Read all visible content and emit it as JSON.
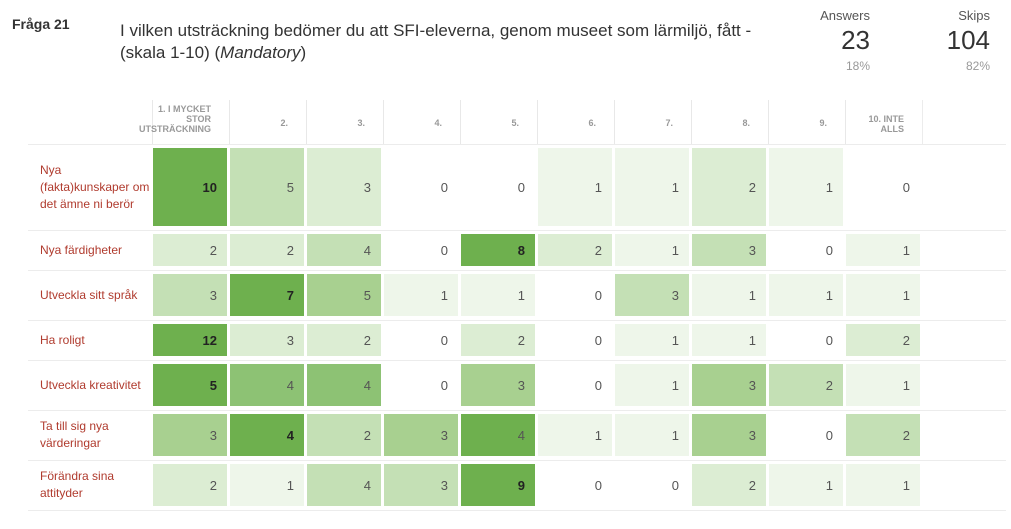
{
  "question": {
    "number": "Fråga 21",
    "title": "I vilken utsträckning bedömer du att SFI-eleverna, genom museet som lärmiljö, fått - (skala 1-10)",
    "mandatory": "Mandatory"
  },
  "stats": {
    "answers": {
      "label": "Answers",
      "value": "23",
      "percent": "18%"
    },
    "skips": {
      "label": "Skips",
      "value": "104",
      "percent": "82%"
    }
  },
  "colors": {
    "shade0": "#ffffff",
    "shade1": "#eef6ea",
    "shade2": "#dcedd3",
    "shade3": "#c4e0b5",
    "shade4": "#a8d090",
    "shade5": "#8dc274",
    "shade6": "#6eb04e",
    "label": "#b03b2e"
  },
  "chart_data": {
    "type": "table",
    "columns": [
      "1. I MYCKET STOR UTSTRÄCKNING",
      "2.",
      "3.",
      "4.",
      "5.",
      "6.",
      "7.",
      "8.",
      "9.",
      "10. INTE ALLS"
    ],
    "rows": [
      {
        "label": "Nya (fakta)kunskaper om det ämne ni berör",
        "values": [
          10,
          5,
          3,
          0,
          0,
          1,
          1,
          2,
          1,
          0
        ],
        "shades": [
          6,
          3,
          2,
          0,
          0,
          1,
          1,
          2,
          1,
          0
        ],
        "bold": [
          0
        ]
      },
      {
        "label": "Nya färdigheter",
        "values": [
          2,
          2,
          4,
          0,
          8,
          2,
          1,
          3,
          0,
          1
        ],
        "shades": [
          2,
          2,
          3,
          0,
          6,
          2,
          1,
          3,
          0,
          1
        ],
        "bold": [
          4
        ]
      },
      {
        "label": "Utveckla sitt språk",
        "values": [
          3,
          7,
          5,
          1,
          1,
          0,
          3,
          1,
          1,
          1
        ],
        "shades": [
          3,
          6,
          4,
          1,
          1,
          0,
          3,
          1,
          1,
          1
        ],
        "bold": [
          1
        ]
      },
      {
        "label": "Ha roligt",
        "values": [
          12,
          3,
          2,
          0,
          2,
          0,
          1,
          1,
          0,
          2
        ],
        "shades": [
          6,
          2,
          2,
          0,
          2,
          0,
          1,
          1,
          0,
          2
        ],
        "bold": [
          0
        ]
      },
      {
        "label": "Utveckla kreativitet",
        "values": [
          5,
          4,
          4,
          0,
          3,
          0,
          1,
          3,
          2,
          1
        ],
        "shades": [
          6,
          5,
          5,
          0,
          4,
          0,
          1,
          4,
          3,
          1
        ],
        "bold": [
          0
        ]
      },
      {
        "label": "Ta till sig nya värderingar",
        "values": [
          3,
          4,
          2,
          3,
          4,
          1,
          1,
          3,
          0,
          2
        ],
        "shades": [
          4,
          6,
          3,
          4,
          6,
          1,
          1,
          4,
          0,
          3
        ],
        "bold": [
          1
        ]
      },
      {
        "label": "Förändra sina attityder",
        "values": [
          2,
          1,
          4,
          3,
          9,
          0,
          0,
          2,
          1,
          1
        ],
        "shades": [
          2,
          1,
          3,
          3,
          6,
          0,
          0,
          2,
          1,
          1
        ],
        "bold": [
          4
        ]
      }
    ]
  }
}
